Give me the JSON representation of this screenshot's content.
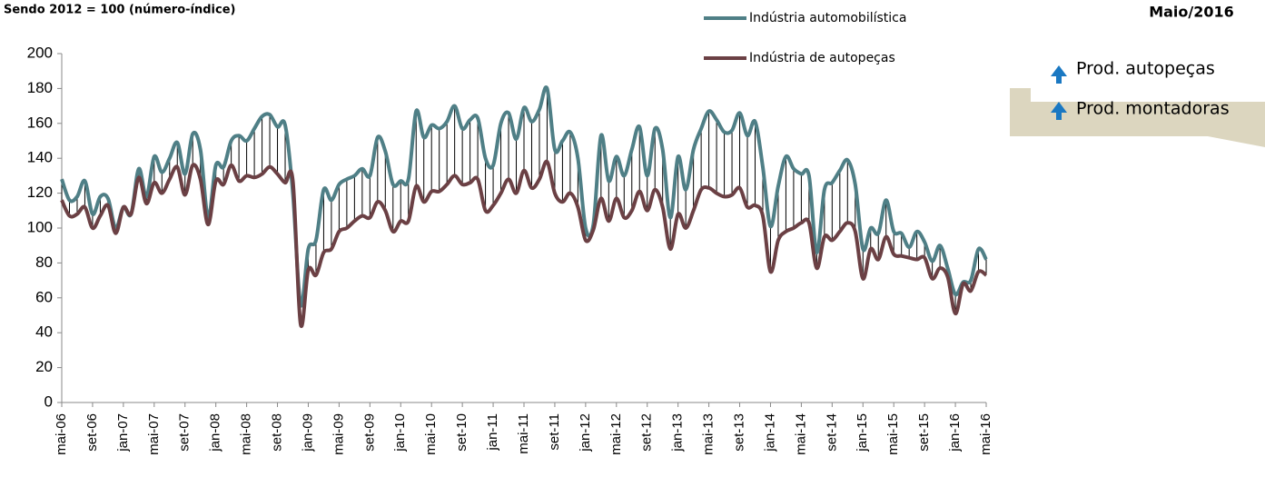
{
  "chart_data": {
    "type": "line",
    "subtitle": "Sendo 2012 = 100 (número-índice)",
    "period": "Maio/2016",
    "panel": [
      "Prod. autopeças",
      "Prod. montadoras"
    ],
    "categories": [
      "mai-06",
      null,
      null,
      null,
      "set-06",
      null,
      null,
      null,
      "jan-07",
      null,
      null,
      null,
      "mai-07",
      null,
      null,
      null,
      "set-07",
      null,
      null,
      null,
      "jan-08",
      null,
      null,
      null,
      "mai-08",
      null,
      null,
      null,
      "set-08",
      null,
      null,
      null,
      "jan-09",
      null,
      null,
      null,
      "mai-09",
      null,
      null,
      null,
      "set-09",
      null,
      null,
      null,
      "jan-10",
      null,
      null,
      null,
      "mai-10",
      null,
      null,
      null,
      "set-10",
      null,
      null,
      null,
      "jan-11",
      null,
      null,
      null,
      "mai-11",
      null,
      null,
      null,
      "set-11",
      null,
      null,
      null,
      "jan-12",
      null,
      null,
      null,
      "mai-12",
      null,
      null,
      null,
      "set-12",
      null,
      null,
      null,
      "jan-13",
      null,
      null,
      null,
      "mai-13",
      null,
      null,
      null,
      "set-13",
      null,
      null,
      null,
      "jan-14",
      null,
      null,
      null,
      "mai-14",
      null,
      null,
      null,
      "set-14",
      null,
      null,
      null,
      "jan-15",
      null,
      null,
      null,
      "mai-15",
      null,
      null,
      null,
      "set-15",
      null,
      null,
      null,
      "jan-16",
      null,
      null,
      null,
      "mai-16"
    ],
    "series": [
      {
        "name": "Indústria automobilística",
        "color": "#4f7f86",
        "values": [
          128,
          116,
          118,
          127,
          108,
          118,
          117,
          100,
          112,
          108,
          134,
          118,
          141,
          132,
          140,
          149,
          131,
          154,
          145,
          106,
          136,
          135,
          150,
          153,
          150,
          157,
          164,
          165,
          158,
          159,
          120,
          56,
          88,
          93,
          122,
          116,
          125,
          128,
          130,
          134,
          130,
          152,
          144,
          125,
          127,
          128,
          167,
          152,
          159,
          157,
          161,
          170,
          157,
          162,
          163,
          140,
          136,
          160,
          166,
          151,
          169,
          161,
          168,
          180,
          145,
          150,
          155,
          140,
          100,
          102,
          153,
          127,
          141,
          130,
          145,
          158,
          130,
          157,
          145,
          106,
          141,
          122,
          145,
          157,
          167,
          162,
          155,
          156,
          166,
          153,
          161,
          135,
          101,
          124,
          141,
          134,
          131,
          130,
          86,
          122,
          126,
          133,
          139,
          125,
          88,
          100,
          97,
          116,
          98,
          97,
          89,
          98,
          92,
          81,
          90,
          77,
          62,
          69,
          70,
          88,
          82
        ]
      },
      {
        "name": "Indústria de autopeças",
        "color": "#6b4044",
        "values": [
          116,
          107,
          108,
          112,
          100,
          107,
          113,
          97,
          112,
          108,
          129,
          114,
          126,
          120,
          128,
          135,
          119,
          136,
          128,
          102,
          127,
          125,
          136,
          127,
          130,
          129,
          131,
          135,
          131,
          126,
          127,
          45,
          76,
          73,
          86,
          88,
          98,
          100,
          104,
          107,
          106,
          115,
          110,
          98,
          104,
          104,
          124,
          115,
          121,
          121,
          125,
          130,
          125,
          126,
          128,
          110,
          113,
          120,
          128,
          120,
          133,
          123,
          128,
          138,
          120,
          115,
          120,
          112,
          93,
          99,
          117,
          104,
          117,
          106,
          110,
          121,
          110,
          122,
          112,
          88,
          108,
          100,
          110,
          122,
          123,
          120,
          118,
          119,
          123,
          112,
          113,
          107,
          75,
          93,
          98,
          100,
          103,
          103,
          77,
          95,
          93,
          98,
          103,
          98,
          71,
          88,
          82,
          95,
          85,
          84,
          83,
          82,
          83,
          71,
          77,
          72,
          51,
          68,
          64,
          75,
          73
        ]
      }
    ],
    "ylim": [
      0,
      200
    ],
    "yticks": [
      0,
      20,
      40,
      60,
      80,
      100,
      120,
      140,
      160,
      180,
      200
    ]
  }
}
